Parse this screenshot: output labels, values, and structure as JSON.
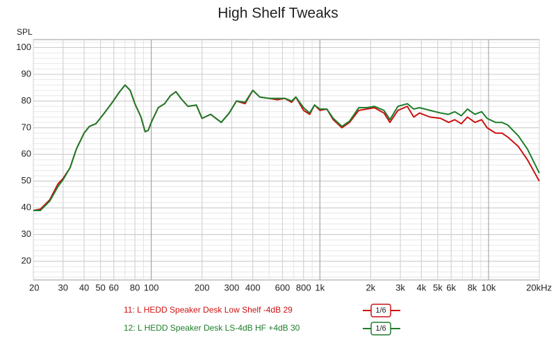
{
  "chart_data": {
    "type": "line",
    "title": "High Shelf Tweaks",
    "y_label": "SPL",
    "xscale": "log",
    "xlim": [
      20,
      20000
    ],
    "ylim": [
      13,
      103
    ],
    "grid": true,
    "xticks": [
      20,
      30,
      40,
      50,
      60,
      80,
      100,
      200,
      300,
      400,
      600,
      800,
      {
        "value": 1000,
        "label": "1k"
      },
      {
        "value": 2000,
        "label": "2k"
      },
      {
        "value": 3000,
        "label": "3k"
      },
      {
        "value": 4000,
        "label": "4k"
      },
      {
        "value": 5000,
        "label": "5k"
      },
      {
        "value": 6000,
        "label": "6k"
      },
      {
        "value": 8000,
        "label": "8k"
      },
      {
        "value": 10000,
        "label": "10k"
      },
      {
        "value": 20000,
        "label": "20kHz"
      }
    ],
    "yticks": [
      20,
      30,
      40,
      50,
      60,
      70,
      80,
      90,
      100
    ],
    "x": [
      20,
      22,
      25,
      28,
      30,
      33,
      36,
      40,
      43,
      47,
      52,
      58,
      65,
      70,
      75,
      80,
      87,
      92,
      96,
      100,
      110,
      120,
      130,
      140,
      150,
      165,
      185,
      200,
      225,
      260,
      290,
      320,
      360,
      400,
      440,
      500,
      560,
      620,
      680,
      720,
      800,
      870,
      930,
      1000,
      1100,
      1200,
      1350,
      1500,
      1700,
      1900,
      2100,
      2400,
      2600,
      2900,
      3300,
      3600,
      3900,
      4500,
      5200,
      5800,
      6300,
      6900,
      7500,
      8300,
      9100,
      9800,
      11000,
      12000,
      13000,
      15000,
      17000,
      20000
    ],
    "series": [
      {
        "name": "11: L HEDD Speaker Desk Low Shelf -4dB 29",
        "smoothing": "1/6",
        "color": "#cc1111",
        "values": [
          39,
          39.5,
          43,
          49,
          51,
          55,
          62,
          68,
          70.5,
          71.5,
          75,
          79,
          83.5,
          86,
          84,
          79,
          74,
          68.5,
          69,
          72,
          77.5,
          79,
          82,
          83.5,
          81,
          78,
          78.5,
          73.5,
          75,
          72,
          75.5,
          80,
          79,
          84,
          81.5,
          81,
          80.5,
          81,
          79.5,
          81.5,
          76.5,
          75,
          78.5,
          76.5,
          77,
          73,
          70,
          72,
          76.5,
          77,
          77.5,
          75.5,
          72,
          76.5,
          78,
          74,
          75.5,
          74,
          73.5,
          72,
          73,
          71.5,
          74,
          72,
          73,
          70,
          68,
          68,
          66.5,
          63,
          58,
          50
        ]
      },
      {
        "name": "12: L HEDD Speaker Desk LS-4dB HF +4dB 30",
        "smoothing": "1/6",
        "color": "#1e7d2a",
        "values": [
          39,
          39,
          42.5,
          48,
          50.5,
          55,
          62,
          68,
          70.5,
          71.5,
          75,
          79,
          83.5,
          86,
          84,
          79,
          74,
          68.5,
          69,
          72,
          77.5,
          79,
          82,
          83.5,
          81,
          78,
          78.5,
          73.5,
          75,
          72,
          75.5,
          80,
          79.5,
          84,
          81.5,
          81,
          81,
          81,
          80,
          81.5,
          77.5,
          75.5,
          78.5,
          77,
          77,
          73.5,
          70.5,
          72.5,
          77.5,
          77.5,
          78,
          76.5,
          73,
          78,
          79,
          77,
          77.5,
          76.5,
          75.5,
          75,
          76,
          74.5,
          77,
          75,
          76,
          73.5,
          72,
          72,
          71,
          67,
          62,
          53
        ]
      }
    ]
  }
}
